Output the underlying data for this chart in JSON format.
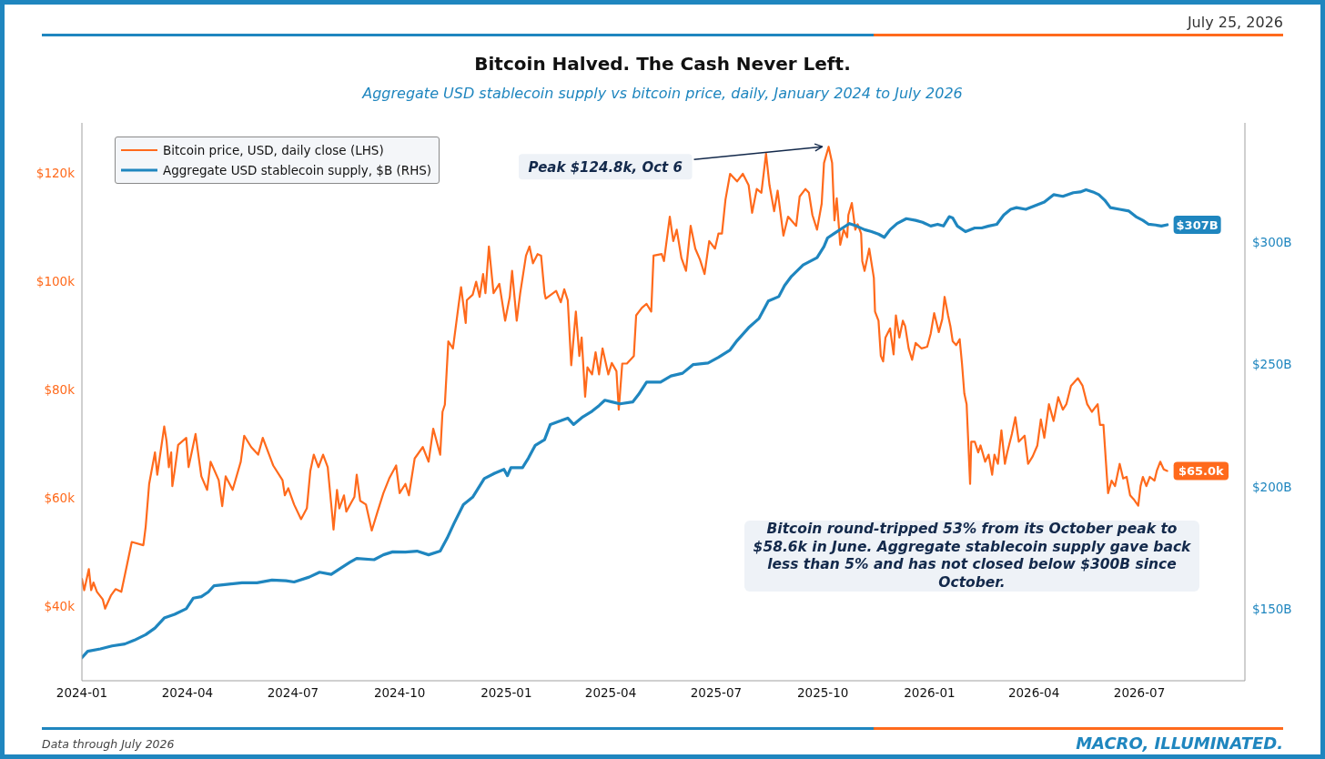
{
  "chart_data": {
    "type": "line",
    "title": "Bitcoin Halved. The Cash Never Left.",
    "subtitle": "Aggregate USD stablecoin supply vs bitcoin price, daily, January 2024 to July 2026",
    "xlim": [
      "2024-01-01",
      "2026-09-30"
    ],
    "xticks": [
      "2024-01",
      "2024-04",
      "2024-07",
      "2024-10",
      "2025-01",
      "2025-04",
      "2025-07",
      "2025-10",
      "2026-01",
      "2026-04",
      "2026-07"
    ],
    "ylim": [
      26.3,
      129.2
    ],
    "yticks": [
      {
        "value": 40,
        "label": "$40k"
      },
      {
        "value": 60,
        "label": "$60k"
      },
      {
        "value": 80,
        "label": "$80k"
      },
      {
        "value": 100,
        "label": "$100k"
      },
      {
        "value": 120,
        "label": "$120k"
      }
    ],
    "y2lim": [
      120.9,
      348.6
    ],
    "y2ticks": [
      {
        "value": 150,
        "label": "$150B"
      },
      {
        "value": 200,
        "label": "$200B"
      },
      {
        "value": 250,
        "label": "$250B"
      },
      {
        "value": 300,
        "label": "$300B"
      }
    ],
    "legend": "top left",
    "series": [
      {
        "name": "Bitcoin price, USD, daily close (LHS)",
        "color": "#ff6a1c",
        "x": [
          "2024-01-01",
          "2024-01-03",
          "2024-01-07",
          "2024-01-09",
          "2024-01-11",
          "2024-01-14",
          "2024-01-19",
          "2024-01-21",
          "2024-01-26",
          "2024-01-30",
          "2024-02-04",
          "2024-02-09",
          "2024-02-13",
          "2024-02-23",
          "2024-02-25",
          "2024-02-28",
          "2024-03-04",
          "2024-03-06",
          "2024-03-12",
          "2024-03-14",
          "2024-03-16",
          "2024-03-18",
          "2024-03-19",
          "2024-03-21",
          "2024-03-24",
          "2024-03-31",
          "2024-04-02",
          "2024-04-08",
          "2024-04-13",
          "2024-04-18",
          "2024-04-21",
          "2024-04-28",
          "2024-05-01",
          "2024-05-04",
          "2024-05-10",
          "2024-05-17",
          "2024-05-20",
          "2024-05-26",
          "2024-06-01",
          "2024-06-05",
          "2024-06-14",
          "2024-06-22",
          "2024-06-24",
          "2024-06-27",
          "2024-07-02",
          "2024-07-08",
          "2024-07-13",
          "2024-07-16",
          "2024-07-19",
          "2024-07-23",
          "2024-07-27",
          "2024-07-31",
          "2024-08-04",
          "2024-08-05",
          "2024-08-08",
          "2024-08-10",
          "2024-08-14",
          "2024-08-16",
          "2024-08-23",
          "2024-08-25",
          "2024-08-28",
          "2024-09-02",
          "2024-09-07",
          "2024-09-12",
          "2024-09-17",
          "2024-09-22",
          "2024-09-28",
          "2024-10-01",
          "2024-10-06",
          "2024-10-09",
          "2024-10-14",
          "2024-10-21",
          "2024-10-26",
          "2024-10-30",
          "2024-11-05",
          "2024-11-07",
          "2024-11-09",
          "2024-11-12",
          "2024-11-16",
          "2024-11-21",
          "2024-11-23",
          "2024-11-27",
          "2024-11-28",
          "2024-12-03",
          "2024-12-06",
          "2024-12-09",
          "2024-12-12",
          "2024-12-14",
          "2024-12-17",
          "2024-12-21",
          "2024-12-26",
          "2024-12-31",
          "2025-01-04",
          "2025-01-06",
          "2025-01-10",
          "2025-01-13",
          "2025-01-18",
          "2025-01-21",
          "2025-01-24",
          "2025-01-28",
          "2025-01-31",
          "2025-02-03",
          "2025-02-04",
          "2025-02-13",
          "2025-02-17",
          "2025-02-20",
          "2025-02-23",
          "2025-02-26",
          "2025-03-02",
          "2025-03-05",
          "2025-03-07",
          "2025-03-10",
          "2025-03-12",
          "2025-03-16",
          "2025-03-19",
          "2025-03-22",
          "2025-03-25",
          "2025-03-30",
          "2025-04-02",
          "2025-04-06",
          "2025-04-08",
          "2025-04-11",
          "2025-04-15",
          "2025-04-21",
          "2025-04-23",
          "2025-04-28",
          "2025-05-02",
          "2025-05-06",
          "2025-05-08",
          "2025-05-15",
          "2025-05-17",
          "2025-05-22",
          "2025-05-25",
          "2025-05-28",
          "2025-06-01",
          "2025-06-05",
          "2025-06-09",
          "2025-06-13",
          "2025-06-17",
          "2025-06-21",
          "2025-06-25",
          "2025-06-30",
          "2025-07-03",
          "2025-07-06",
          "2025-07-09",
          "2025-07-13",
          "2025-07-19",
          "2025-07-24",
          "2025-07-29",
          "2025-08-01",
          "2025-08-05",
          "2025-08-09",
          "2025-08-13",
          "2025-08-16",
          "2025-08-20",
          "2025-08-23",
          "2025-08-28",
          "2025-09-01",
          "2025-09-08",
          "2025-09-11",
          "2025-09-16",
          "2025-09-19",
          "2025-09-22",
          "2025-09-26",
          "2025-09-30",
          "2025-10-02",
          "2025-10-06",
          "2025-10-09",
          "2025-10-11",
          "2025-10-13",
          "2025-10-16",
          "2025-10-19",
          "2025-10-22",
          "2025-10-23",
          "2025-10-26",
          "2025-10-29",
          "2025-10-31",
          "2025-11-03",
          "2025-11-04",
          "2025-11-06",
          "2025-11-10",
          "2025-11-14",
          "2025-11-15",
          "2025-11-18",
          "2025-11-20",
          "2025-11-22",
          "2025-11-24",
          "2025-11-28",
          "2025-12-01",
          "2025-12-03",
          "2025-12-06",
          "2025-12-09",
          "2025-12-11",
          "2025-12-14",
          "2025-12-17",
          "2025-12-20",
          "2025-12-25",
          "2025-12-30",
          "2026-01-02",
          "2026-01-05",
          "2026-01-09",
          "2026-01-12",
          "2026-01-14",
          "2026-01-17",
          "2026-01-19",
          "2026-01-21",
          "2026-01-24",
          "2026-01-27",
          "2026-01-29",
          "2026-01-31",
          "2026-02-02",
          "2026-02-05",
          "2026-02-06",
          "2026-02-09",
          "2026-02-12",
          "2026-02-14",
          "2026-02-18",
          "2026-02-21",
          "2026-02-24",
          "2026-02-26",
          "2026-03-01",
          "2026-03-04",
          "2026-03-07",
          "2026-03-09",
          "2026-03-13",
          "2026-03-16",
          "2026-03-19",
          "2026-03-24",
          "2026-03-27",
          "2026-03-31",
          "2026-04-04",
          "2026-04-07",
          "2026-04-10",
          "2026-04-14",
          "2026-04-18",
          "2026-04-22",
          "2026-04-26",
          "2026-04-29",
          "2026-05-03",
          "2026-05-06",
          "2026-05-09",
          "2026-05-13",
          "2026-05-17",
          "2026-05-21",
          "2026-05-26",
          "2026-05-28",
          "2026-05-31",
          "2026-06-03",
          "2026-06-04",
          "2026-06-07",
          "2026-06-10",
          "2026-06-14",
          "2026-06-17",
          "2026-06-20",
          "2026-06-23",
          "2026-06-26",
          "2026-06-30",
          "2026-07-02",
          "2026-07-04",
          "2026-07-07",
          "2026-07-10",
          "2026-07-14",
          "2026-07-16",
          "2026-07-19",
          "2026-07-22",
          "2026-07-25"
        ],
        "values": [
          45.1,
          43.0,
          46.9,
          43.0,
          44.4,
          42.7,
          41.3,
          39.6,
          42.0,
          43.2,
          42.7,
          47.8,
          51.9,
          51.3,
          54.7,
          62.6,
          68.4,
          64.3,
          73.2,
          70.5,
          65.7,
          68.4,
          62.2,
          65.0,
          69.8,
          71.1,
          65.7,
          71.8,
          64.0,
          61.5,
          66.7,
          63.3,
          58.5,
          64.0,
          61.5,
          66.7,
          71.5,
          69.4,
          68.0,
          71.1,
          66.0,
          63.3,
          60.5,
          61.8,
          58.8,
          56.1,
          58.1,
          65.0,
          68.0,
          65.7,
          68.0,
          65.7,
          56.6,
          54.2,
          61.5,
          58.1,
          60.5,
          57.5,
          60.2,
          64.3,
          59.5,
          58.8,
          54.0,
          57.5,
          60.9,
          63.6,
          66.0,
          60.9,
          62.6,
          60.5,
          67.3,
          69.4,
          66.7,
          72.8,
          68.0,
          75.9,
          77.2,
          88.9,
          87.6,
          95.8,
          98.9,
          92.3,
          96.5,
          97.5,
          99.9,
          97.1,
          101.3,
          97.8,
          106.4,
          97.8,
          99.5,
          92.7,
          97.1,
          101.9,
          92.7,
          97.8,
          104.7,
          106.4,
          103.3,
          105.0,
          104.7,
          97.8,
          96.8,
          98.2,
          96.1,
          98.5,
          96.5,
          84.5,
          94.4,
          86.2,
          89.6,
          78.7,
          84.1,
          82.8,
          86.9,
          82.8,
          87.6,
          82.8,
          84.9,
          83.4,
          76.3,
          84.8,
          84.8,
          86.2,
          93.7,
          95.1,
          95.8,
          94.4,
          104.7,
          105.0,
          103.7,
          111.9,
          107.4,
          109.5,
          104.3,
          101.9,
          110.2,
          106.0,
          104.0,
          101.3,
          107.4,
          106.0,
          108.8,
          108.8,
          115.0,
          119.8,
          118.4,
          119.8,
          117.7,
          112.6,
          117.0,
          116.3,
          123.5,
          117.7,
          112.9,
          116.7,
          108.4,
          111.9,
          110.2,
          115.6,
          117.0,
          116.3,
          112.2,
          109.5,
          114.3,
          121.8,
          124.8,
          121.8,
          111.2,
          115.3,
          106.7,
          109.5,
          108.1,
          112.2,
          114.4,
          109.5,
          110.5,
          108.8,
          103.7,
          101.9,
          106.0,
          100.6,
          94.4,
          92.7,
          86.2,
          85.2,
          89.6,
          91.3,
          86.5,
          93.7,
          89.6,
          92.7,
          91.7,
          87.6,
          85.5,
          88.6,
          87.6,
          87.9,
          90.3,
          94.1,
          90.6,
          93.0,
          97.1,
          93.7,
          91.7,
          88.9,
          88.2,
          89.3,
          84.8,
          79.3,
          77.3,
          62.6,
          70.4,
          70.4,
          68.4,
          69.7,
          66.7,
          68.0,
          64.3,
          68.0,
          66.3,
          72.5,
          66.3,
          68.4,
          71.8,
          74.9,
          70.4,
          71.5,
          66.3,
          67.7,
          69.7,
          74.5,
          71.1,
          77.3,
          74.2,
          78.6,
          76.3,
          77.3,
          80.7,
          81.4,
          82.1,
          80.7,
          77.3,
          75.9,
          77.3,
          73.5,
          73.5,
          63.9,
          60.9,
          63.2,
          62.2,
          66.3,
          63.6,
          63.9,
          60.5,
          59.8,
          58.6,
          62.2,
          63.9,
          62.2,
          63.9,
          63.2,
          65.0,
          66.7,
          65.3,
          65.0
        ],
        "value_labels": [
          null,
          null,
          null,
          null,
          null,
          null,
          null,
          null,
          null,
          null,
          null,
          null,
          null,
          null,
          null,
          null,
          null,
          null,
          null,
          null,
          null,
          null,
          null,
          null,
          null,
          null,
          null,
          null,
          null,
          null,
          null,
          null,
          null,
          null,
          null,
          null,
          null,
          null,
          null,
          null,
          null,
          null,
          null,
          null,
          null,
          null,
          null,
          null,
          null,
          null,
          null,
          null,
          null,
          null,
          null,
          null,
          null,
          null,
          null,
          null,
          null,
          null,
          null,
          null,
          null,
          null,
          null,
          null,
          null,
          null,
          null,
          null,
          null,
          null,
          null,
          null,
          null,
          null,
          null,
          null,
          null,
          null,
          null,
          null,
          null,
          null,
          null,
          null,
          null,
          null,
          null,
          null,
          null,
          null,
          null,
          null,
          null,
          null,
          null,
          null,
          null,
          null,
          null,
          null,
          null,
          null,
          null,
          null,
          null,
          null,
          null,
          null,
          null,
          null,
          null,
          null,
          null,
          null,
          null,
          null,
          null,
          null,
          null,
          null,
          null,
          null,
          null,
          null,
          null,
          null,
          null,
          null,
          null,
          null,
          null,
          null,
          null,
          null,
          null,
          null,
          null,
          null,
          null,
          null,
          null,
          null,
          null,
          null,
          null,
          null,
          null,
          null,
          null,
          null,
          null,
          null,
          null,
          null,
          null,
          null,
          null,
          null,
          null,
          null,
          null,
          null,
          null,
          null,
          null,
          null,
          null,
          null,
          null,
          null,
          null,
          null,
          null,
          null,
          null,
          null,
          null,
          null,
          null,
          null,
          null,
          null,
          null,
          null,
          null,
          null,
          null,
          null,
          null,
          null,
          null,
          null,
          null,
          null,
          null,
          null,
          null,
          null,
          null,
          null,
          null,
          null,
          null,
          null,
          null,
          null,
          null,
          null,
          null,
          null,
          null,
          null,
          null,
          null,
          null,
          null,
          null,
          null,
          null,
          null,
          null,
          null,
          null,
          null,
          null,
          null,
          null,
          null,
          null,
          null,
          null,
          null,
          null,
          null,
          null,
          null,
          null,
          null,
          null,
          null,
          null,
          null,
          null,
          null,
          null,
          null,
          null,
          null,
          null,
          null,
          null,
          null,
          null,
          null,
          null,
          null,
          null,
          null,
          null,
          null,
          null,
          "$65.0k"
        ]
      },
      {
        "name": "Aggregate USD stablecoin supply, $B (RHS)",
        "color": "#1f86bf",
        "axis": "y2",
        "x": [
          "2024-01-01",
          "2024-01-06",
          "2024-01-17",
          "2024-01-27",
          "2024-02-07",
          "2024-02-15",
          "2024-02-25",
          "2024-03-04",
          "2024-03-12",
          "2024-03-21",
          "2024-03-31",
          "2024-04-06",
          "2024-04-13",
          "2024-04-19",
          "2024-04-24",
          "2024-05-05",
          "2024-05-18",
          "2024-05-31",
          "2024-06-13",
          "2024-06-25",
          "2024-07-02",
          "2024-07-15",
          "2024-07-24",
          "2024-08-03",
          "2024-08-09",
          "2024-08-19",
          "2024-08-25",
          "2024-09-09",
          "2024-09-17",
          "2024-09-25",
          "2024-10-06",
          "2024-10-16",
          "2024-10-26",
          "2024-11-05",
          "2024-11-11",
          "2024-11-17",
          "2024-11-25",
          "2024-12-03",
          "2024-12-13",
          "2024-12-22",
          "2024-12-30",
          "2025-01-02",
          "2025-01-05",
          "2025-01-15",
          "2025-01-20",
          "2025-01-26",
          "2025-02-03",
          "2025-02-08",
          "2025-02-17",
          "2025-02-23",
          "2025-02-28",
          "2025-03-08",
          "2025-03-16",
          "2025-03-22",
          "2025-03-27",
          "2025-04-02",
          "2025-04-09",
          "2025-04-20",
          "2025-04-25",
          "2025-05-02",
          "2025-05-14",
          "2025-05-23",
          "2025-06-02",
          "2025-06-11",
          "2025-06-24",
          "2025-07-03",
          "2025-07-13",
          "2025-07-19",
          "2025-07-29",
          "2025-08-07",
          "2025-08-15",
          "2025-08-24",
          "2025-08-29",
          "2025-09-04",
          "2025-09-14",
          "2025-09-26",
          "2025-10-02",
          "2025-10-05",
          "2025-10-11",
          "2025-10-18",
          "2025-10-24",
          "2025-10-30",
          "2025-11-06",
          "2025-11-12",
          "2025-11-18",
          "2025-11-23",
          "2025-11-28",
          "2025-12-04",
          "2025-12-12",
          "2025-12-20",
          "2025-12-26",
          "2026-01-02",
          "2026-01-08",
          "2026-01-13",
          "2026-01-18",
          "2026-01-21",
          "2026-01-25",
          "2026-02-01",
          "2026-02-09",
          "2026-02-15",
          "2026-02-21",
          "2026-02-28",
          "2026-03-06",
          "2026-03-12",
          "2026-03-17",
          "2026-03-25",
          "2026-04-02",
          "2026-04-10",
          "2026-04-18",
          "2026-04-26",
          "2026-05-05",
          "2026-05-11",
          "2026-05-16",
          "2026-05-22",
          "2026-05-27",
          "2026-06-01",
          "2026-06-06",
          "2026-06-14",
          "2026-06-22",
          "2026-06-28",
          "2026-07-04",
          "2026-07-09",
          "2026-07-15",
          "2026-07-20",
          "2026-07-25"
        ],
        "values": [
          130.3,
          132.9,
          133.9,
          135.1,
          135.9,
          137.4,
          139.7,
          142.4,
          146.5,
          148.0,
          150.3,
          154.6,
          155.2,
          157.1,
          159.7,
          160.2,
          160.9,
          160.9,
          162.0,
          161.7,
          161.2,
          163.2,
          165.2,
          164.3,
          166.2,
          169.2,
          170.8,
          170.3,
          172.3,
          173.5,
          173.4,
          173.8,
          172.3,
          173.8,
          179.1,
          185.2,
          192.8,
          195.8,
          203.4,
          205.6,
          207.2,
          204.6,
          207.9,
          207.9,
          211.7,
          217.0,
          219.3,
          225.5,
          227.0,
          228.1,
          225.5,
          228.6,
          230.9,
          233.2,
          235.4,
          234.7,
          233.9,
          234.7,
          237.7,
          242.8,
          242.8,
          245.3,
          246.4,
          249.9,
          250.6,
          252.9,
          255.9,
          259.7,
          265.0,
          268.8,
          275.9,
          277.7,
          282.2,
          286.0,
          290.6,
          293.6,
          298.1,
          301.6,
          303.5,
          305.7,
          307.5,
          306.5,
          305.0,
          304.2,
          303.2,
          301.9,
          305.0,
          307.5,
          309.5,
          308.8,
          308.0,
          306.5,
          307.2,
          306.5,
          310.3,
          309.8,
          306.5,
          304.2,
          305.7,
          305.7,
          306.5,
          307.2,
          311.0,
          313.3,
          314.0,
          313.3,
          314.8,
          316.3,
          319.3,
          318.6,
          320.1,
          320.4,
          321.3,
          320.4,
          319.3,
          317.1,
          314.0,
          313.3,
          312.6,
          310.3,
          308.8,
          307.2,
          306.9,
          306.5,
          307
        ],
        "value_labels": [
          null,
          null,
          null,
          null,
          null,
          null,
          null,
          null,
          null,
          null,
          null,
          null,
          null,
          null,
          null,
          null,
          null,
          null,
          null,
          null,
          null,
          null,
          null,
          null,
          null,
          null,
          null,
          null,
          null,
          null,
          null,
          null,
          null,
          null,
          null,
          null,
          null,
          null,
          null,
          null,
          null,
          null,
          null,
          null,
          null,
          null,
          null,
          null,
          null,
          null,
          null,
          null,
          null,
          null,
          null,
          null,
          null,
          null,
          null,
          null,
          null,
          null,
          null,
          null,
          null,
          null,
          null,
          null,
          null,
          null,
          null,
          null,
          null,
          null,
          null,
          null,
          null,
          null,
          null,
          null,
          null,
          null,
          null,
          null,
          null,
          null,
          null,
          null,
          null,
          null,
          null,
          null,
          null,
          null,
          null,
          null,
          null,
          null,
          null,
          null,
          null,
          null,
          null,
          null,
          null,
          null,
          null,
          null,
          null,
          null,
          null,
          null,
          null,
          null,
          null,
          null,
          null,
          null,
          null,
          null,
          null,
          null,
          null,
          null,
          "$307B"
        ]
      }
    ],
    "annotations": [
      "July 25, 2026",
      {
        "text": "Peak $124.8k, Oct 6",
        "x": "2025-10-06",
        "y": 124.8
      },
      "Bitcoin round-tripped 53% from its October peak to $58.6k in June. Aggregate stablecoin supply gave back less than 5% and has not closed below $300B since October.",
      "Data through July 2026",
      "MACRO, ILLUMINATED."
    ]
  }
}
